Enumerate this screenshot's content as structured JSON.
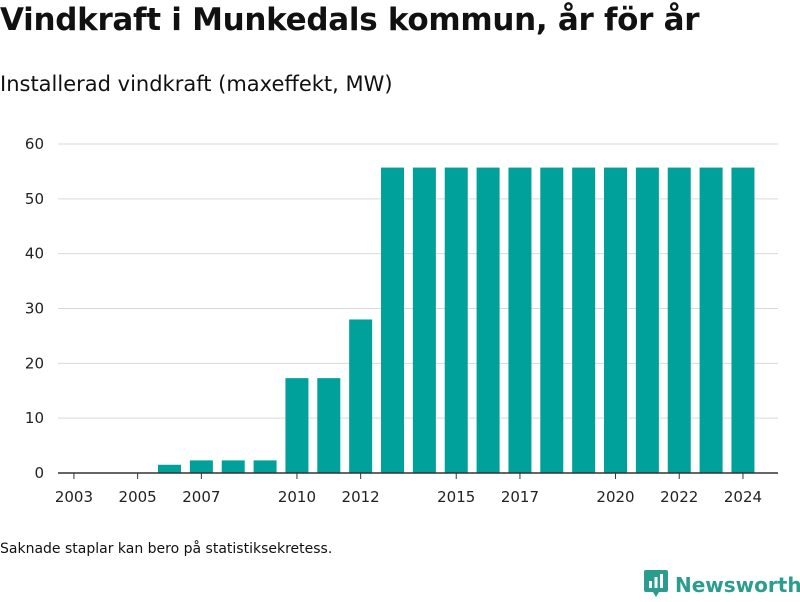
{
  "title": "Vindkraft i Munkedals kommun, år för år",
  "subtitle": "Installerad vindkraft (maxeffekt, MW)",
  "footnote": "Saknade staplar kan bero på statistiksekretess.",
  "brand": {
    "name": "Newsworthy",
    "icon": "newsworthy-logo-icon",
    "color": "#2a9d8f"
  },
  "chart_data": {
    "type": "bar",
    "color": "#00a19a",
    "categories": [
      2003,
      2004,
      2005,
      2006,
      2007,
      2008,
      2009,
      2010,
      2011,
      2012,
      2013,
      2014,
      2015,
      2016,
      2017,
      2018,
      2019,
      2020,
      2021,
      2022,
      2023,
      2024
    ],
    "values": [
      0,
      0,
      0,
      1.5,
      2.3,
      2.3,
      2.3,
      17.3,
      17.3,
      28,
      55.7,
      55.7,
      55.7,
      55.7,
      55.7,
      55.7,
      55.7,
      55.7,
      55.7,
      55.7,
      55.7,
      55.7
    ],
    "x_tick_labels": [
      "2003",
      "2005",
      "2007",
      "2010",
      "2012",
      "2015",
      "2017",
      "2020",
      "2022",
      "2024"
    ],
    "y_ticks": [
      0,
      10,
      20,
      30,
      40,
      50,
      60
    ],
    "ylim": [
      0,
      60
    ],
    "grid": true,
    "legend": "none"
  }
}
